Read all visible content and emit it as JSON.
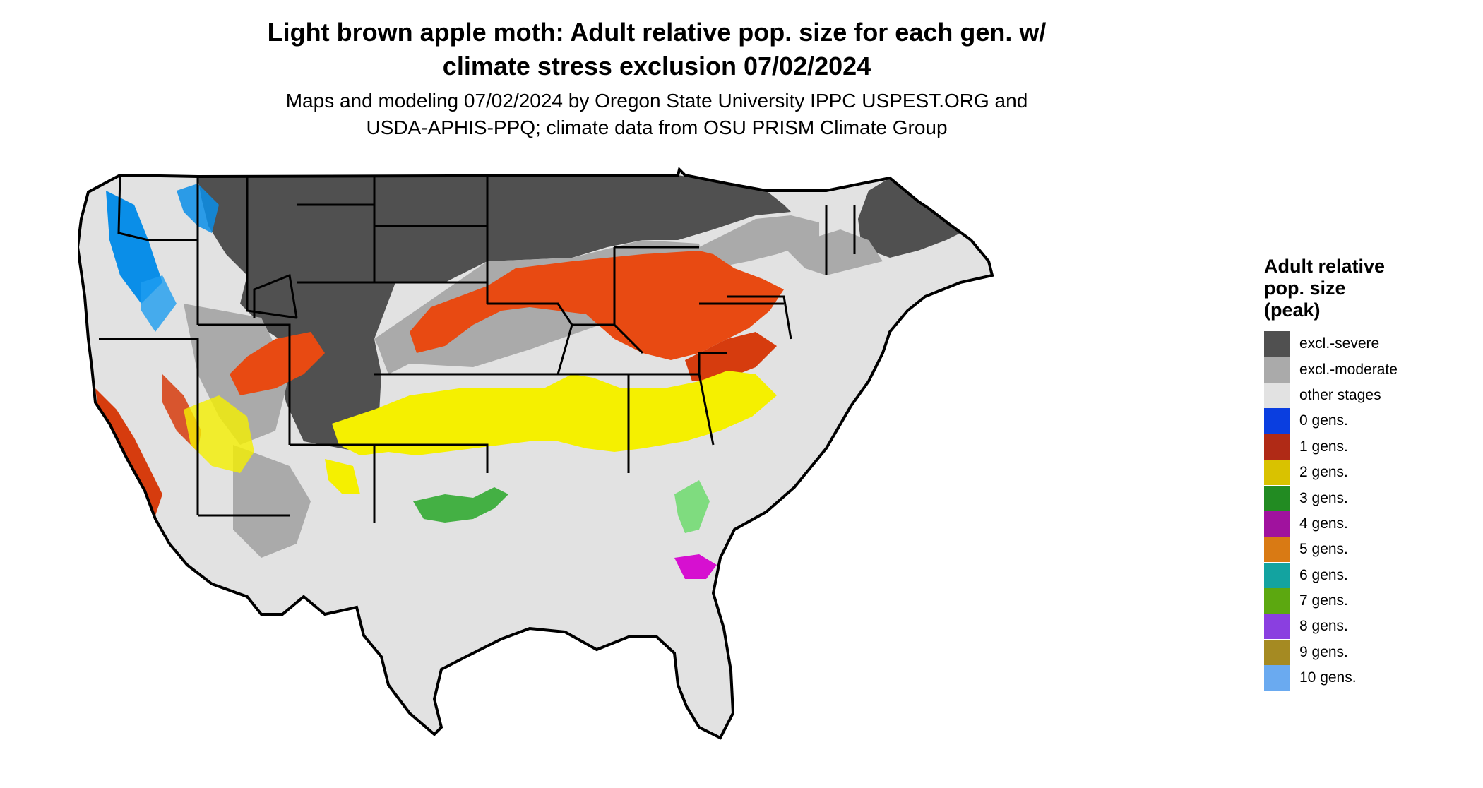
{
  "title_line1": "Light brown apple moth: Adult relative pop. size for each gen. w/",
  "title_line2": "climate stress exclusion 07/02/2024",
  "subtitle_line1": "Maps and modeling 07/02/2024 by Oregon State University IPPC USPEST.ORG and",
  "subtitle_line2": "USDA-APHIS-PPQ; climate data from OSU PRISM Climate Group",
  "legend": {
    "title_line1": "Adult relative",
    "title_line2": "pop. size",
    "title_line3": "(peak)",
    "items": [
      {
        "label": "excl.-severe",
        "color": "#505050"
      },
      {
        "label": "excl.-moderate",
        "color": "#aaaaaa"
      },
      {
        "label": "other stages",
        "color": "#e2e2e2"
      },
      {
        "label": "0 gens.",
        "color": "#0a3ee0"
      },
      {
        "label": "1 gens.",
        "color": "#b02a16"
      },
      {
        "label": "2 gens.",
        "color": "#d9c200"
      },
      {
        "label": "3 gens.",
        "color": "#228b22"
      },
      {
        "label": "4 gens.",
        "color": "#a0129e"
      },
      {
        "label": "5 gens.",
        "color": "#d97a14"
      },
      {
        "label": "6 gens.",
        "color": "#13a3a0"
      },
      {
        "label": "7 gens.",
        "color": "#5ca810"
      },
      {
        "label": "8 gens.",
        "color": "#8a3fe0"
      },
      {
        "label": "9 gens.",
        "color": "#a58a22"
      },
      {
        "label": "10 gens.",
        "color": "#6aaaf0"
      }
    ]
  }
}
